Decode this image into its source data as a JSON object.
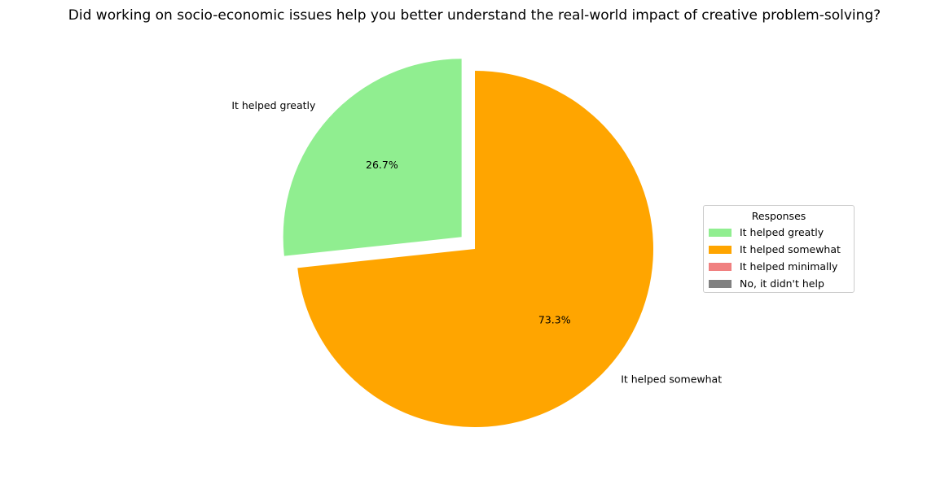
{
  "chart_data": {
    "type": "pie",
    "title": "Did working on socio-economic issues help you better understand the real-world impact of creative problem-solving?",
    "categories": [
      "It helped greatly",
      "It helped somewhat",
      "It helped minimally",
      "No, it didn't help"
    ],
    "values": [
      26.7,
      73.3,
      0,
      0
    ],
    "percent_labels": [
      "26.7%",
      "73.3%"
    ],
    "colors": [
      "#90ee90",
      "#ffa500",
      "#f08080",
      "#808080"
    ],
    "exploded": [
      "It helped greatly"
    ],
    "start_angle_deg": 90,
    "legend": {
      "title": "Responses",
      "placement": "center-right",
      "entries": [
        "It helped greatly",
        "It helped somewhat",
        "It helped minimally",
        "No, it didn't help"
      ]
    }
  }
}
